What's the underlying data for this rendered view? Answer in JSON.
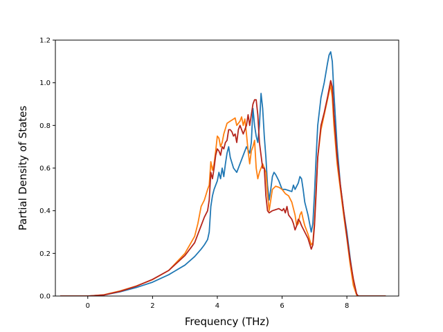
{
  "chart_data": {
    "type": "line",
    "title": "",
    "xlabel": "Frequency (THz)",
    "ylabel": "Partial Density of States",
    "xlim": [
      -1.0,
      9.6
    ],
    "ylim": [
      0.0,
      1.2
    ],
    "xticks": [
      0,
      2,
      4,
      6,
      8
    ],
    "xtick_labels": [
      "0",
      "2",
      "4",
      "6",
      "8"
    ],
    "yticks": [
      0.0,
      0.2,
      0.4,
      0.6,
      0.8,
      1.0,
      1.2
    ],
    "ytick_labels": [
      "0.0",
      "0.2",
      "0.4",
      "0.6",
      "0.8",
      "1.0",
      "1.2"
    ],
    "grid": false,
    "legend": "none",
    "series": [
      {
        "color": "#1f77b4",
        "points": [
          [
            -0.85,
            0.0
          ],
          [
            0.0,
            0.0
          ],
          [
            0.5,
            0.005
          ],
          [
            1.0,
            0.02
          ],
          [
            1.5,
            0.04
          ],
          [
            2.0,
            0.065
          ],
          [
            2.5,
            0.1
          ],
          [
            3.0,
            0.145
          ],
          [
            3.3,
            0.185
          ],
          [
            3.5,
            0.22
          ],
          [
            3.6,
            0.24
          ],
          [
            3.7,
            0.265
          ],
          [
            3.75,
            0.3
          ],
          [
            3.8,
            0.42
          ],
          [
            3.85,
            0.47
          ],
          [
            3.9,
            0.5
          ],
          [
            4.0,
            0.54
          ],
          [
            4.05,
            0.58
          ],
          [
            4.1,
            0.55
          ],
          [
            4.15,
            0.6
          ],
          [
            4.2,
            0.56
          ],
          [
            4.25,
            0.62
          ],
          [
            4.3,
            0.67
          ],
          [
            4.35,
            0.7
          ],
          [
            4.4,
            0.65
          ],
          [
            4.5,
            0.6
          ],
          [
            4.6,
            0.58
          ],
          [
            4.7,
            0.62
          ],
          [
            4.8,
            0.66
          ],
          [
            4.9,
            0.7
          ],
          [
            5.0,
            0.67
          ],
          [
            5.05,
            0.72
          ],
          [
            5.1,
            0.88
          ],
          [
            5.15,
            0.8
          ],
          [
            5.2,
            0.75
          ],
          [
            5.25,
            0.72
          ],
          [
            5.3,
            0.8
          ],
          [
            5.35,
            0.95
          ],
          [
            5.4,
            0.88
          ],
          [
            5.45,
            0.75
          ],
          [
            5.5,
            0.65
          ],
          [
            5.55,
            0.52
          ],
          [
            5.6,
            0.45
          ],
          [
            5.65,
            0.5
          ],
          [
            5.7,
            0.56
          ],
          [
            5.75,
            0.58
          ],
          [
            5.8,
            0.57
          ],
          [
            5.9,
            0.54
          ],
          [
            6.0,
            0.5
          ],
          [
            6.1,
            0.5
          ],
          [
            6.2,
            0.495
          ],
          [
            6.3,
            0.49
          ],
          [
            6.35,
            0.52
          ],
          [
            6.4,
            0.5
          ],
          [
            6.5,
            0.53
          ],
          [
            6.55,
            0.56
          ],
          [
            6.6,
            0.55
          ],
          [
            6.65,
            0.5
          ],
          [
            6.7,
            0.44
          ],
          [
            6.8,
            0.38
          ],
          [
            6.9,
            0.3
          ],
          [
            6.95,
            0.34
          ],
          [
            7.0,
            0.48
          ],
          [
            7.05,
            0.65
          ],
          [
            7.1,
            0.8
          ],
          [
            7.2,
            0.93
          ],
          [
            7.3,
            1.0
          ],
          [
            7.4,
            1.09
          ],
          [
            7.45,
            1.13
          ],
          [
            7.5,
            1.145
          ],
          [
            7.55,
            1.1
          ],
          [
            7.6,
            0.95
          ],
          [
            7.7,
            0.7
          ],
          [
            7.8,
            0.52
          ],
          [
            7.9,
            0.4
          ],
          [
            8.0,
            0.3
          ],
          [
            8.1,
            0.18
          ],
          [
            8.2,
            0.07
          ],
          [
            8.3,
            0.01
          ],
          [
            8.35,
            0.0
          ],
          [
            9.2,
            0.0
          ]
        ]
      },
      {
        "color": "#ff7f0e",
        "points": [
          [
            -0.85,
            0.0
          ],
          [
            0.0,
            0.0
          ],
          [
            0.5,
            0.006
          ],
          [
            1.0,
            0.024
          ],
          [
            1.5,
            0.047
          ],
          [
            2.0,
            0.077
          ],
          [
            2.5,
            0.12
          ],
          [
            3.0,
            0.2
          ],
          [
            3.3,
            0.28
          ],
          [
            3.4,
            0.34
          ],
          [
            3.5,
            0.42
          ],
          [
            3.6,
            0.45
          ],
          [
            3.7,
            0.5
          ],
          [
            3.75,
            0.52
          ],
          [
            3.8,
            0.63
          ],
          [
            3.85,
            0.59
          ],
          [
            3.9,
            0.62
          ],
          [
            3.95,
            0.68
          ],
          [
            4.0,
            0.75
          ],
          [
            4.05,
            0.74
          ],
          [
            4.1,
            0.7
          ],
          [
            4.15,
            0.72
          ],
          [
            4.2,
            0.76
          ],
          [
            4.3,
            0.81
          ],
          [
            4.4,
            0.82
          ],
          [
            4.5,
            0.83
          ],
          [
            4.55,
            0.835
          ],
          [
            4.6,
            0.8
          ],
          [
            4.7,
            0.82
          ],
          [
            4.75,
            0.84
          ],
          [
            4.8,
            0.8
          ],
          [
            4.85,
            0.83
          ],
          [
            4.9,
            0.76
          ],
          [
            4.95,
            0.68
          ],
          [
            5.0,
            0.62
          ],
          [
            5.05,
            0.68
          ],
          [
            5.1,
            0.7
          ],
          [
            5.15,
            0.73
          ],
          [
            5.2,
            0.6
          ],
          [
            5.25,
            0.55
          ],
          [
            5.3,
            0.58
          ],
          [
            5.35,
            0.6
          ],
          [
            5.4,
            0.62
          ],
          [
            5.45,
            0.6
          ],
          [
            5.5,
            0.58
          ],
          [
            5.55,
            0.48
          ],
          [
            5.6,
            0.4
          ],
          [
            5.65,
            0.45
          ],
          [
            5.7,
            0.5
          ],
          [
            5.8,
            0.515
          ],
          [
            5.9,
            0.51
          ],
          [
            6.0,
            0.5
          ],
          [
            6.1,
            0.48
          ],
          [
            6.2,
            0.47
          ],
          [
            6.3,
            0.44
          ],
          [
            6.4,
            0.38
          ],
          [
            6.45,
            0.33
          ],
          [
            6.5,
            0.34
          ],
          [
            6.55,
            0.38
          ],
          [
            6.6,
            0.395
          ],
          [
            6.65,
            0.36
          ],
          [
            6.7,
            0.33
          ],
          [
            6.8,
            0.29
          ],
          [
            6.9,
            0.24
          ],
          [
            6.95,
            0.25
          ],
          [
            7.0,
            0.35
          ],
          [
            7.05,
            0.5
          ],
          [
            7.1,
            0.65
          ],
          [
            7.2,
            0.78
          ],
          [
            7.3,
            0.85
          ],
          [
            7.4,
            0.92
          ],
          [
            7.5,
            0.99
          ],
          [
            7.55,
            0.93
          ],
          [
            7.6,
            0.8
          ],
          [
            7.7,
            0.62
          ],
          [
            7.8,
            0.5
          ],
          [
            7.9,
            0.38
          ],
          [
            8.0,
            0.27
          ],
          [
            8.1,
            0.15
          ],
          [
            8.2,
            0.05
          ],
          [
            8.3,
            0.005
          ],
          [
            8.35,
            0.0
          ],
          [
            9.2,
            0.0
          ]
        ]
      },
      {
        "color": "#b5251c",
        "points": [
          [
            -0.85,
            0.0
          ],
          [
            0.0,
            0.0
          ],
          [
            0.5,
            0.005
          ],
          [
            1.0,
            0.022
          ],
          [
            1.5,
            0.046
          ],
          [
            2.0,
            0.078
          ],
          [
            2.5,
            0.12
          ],
          [
            3.0,
            0.19
          ],
          [
            3.3,
            0.25
          ],
          [
            3.4,
            0.29
          ],
          [
            3.5,
            0.33
          ],
          [
            3.6,
            0.37
          ],
          [
            3.7,
            0.4
          ],
          [
            3.75,
            0.45
          ],
          [
            3.8,
            0.58
          ],
          [
            3.85,
            0.55
          ],
          [
            3.9,
            0.6
          ],
          [
            3.95,
            0.66
          ],
          [
            4.0,
            0.69
          ],
          [
            4.05,
            0.68
          ],
          [
            4.1,
            0.66
          ],
          [
            4.15,
            0.7
          ],
          [
            4.2,
            0.69
          ],
          [
            4.25,
            0.72
          ],
          [
            4.3,
            0.73
          ],
          [
            4.35,
            0.78
          ],
          [
            4.4,
            0.78
          ],
          [
            4.45,
            0.77
          ],
          [
            4.5,
            0.75
          ],
          [
            4.55,
            0.76
          ],
          [
            4.6,
            0.72
          ],
          [
            4.65,
            0.78
          ],
          [
            4.7,
            0.8
          ],
          [
            4.75,
            0.78
          ],
          [
            4.8,
            0.76
          ],
          [
            4.85,
            0.78
          ],
          [
            4.9,
            0.8
          ],
          [
            4.95,
            0.85
          ],
          [
            5.0,
            0.8
          ],
          [
            5.05,
            0.85
          ],
          [
            5.1,
            0.9
          ],
          [
            5.15,
            0.92
          ],
          [
            5.2,
            0.92
          ],
          [
            5.25,
            0.85
          ],
          [
            5.3,
            0.72
          ],
          [
            5.35,
            0.66
          ],
          [
            5.4,
            0.6
          ],
          [
            5.45,
            0.6
          ],
          [
            5.5,
            0.47
          ],
          [
            5.55,
            0.4
          ],
          [
            5.6,
            0.39
          ],
          [
            5.7,
            0.4
          ],
          [
            5.8,
            0.405
          ],
          [
            5.9,
            0.41
          ],
          [
            6.0,
            0.4
          ],
          [
            6.05,
            0.41
          ],
          [
            6.1,
            0.39
          ],
          [
            6.15,
            0.42
          ],
          [
            6.2,
            0.38
          ],
          [
            6.3,
            0.36
          ],
          [
            6.35,
            0.34
          ],
          [
            6.4,
            0.31
          ],
          [
            6.45,
            0.33
          ],
          [
            6.5,
            0.36
          ],
          [
            6.55,
            0.35
          ],
          [
            6.6,
            0.33
          ],
          [
            6.7,
            0.3
          ],
          [
            6.8,
            0.27
          ],
          [
            6.9,
            0.22
          ],
          [
            6.95,
            0.24
          ],
          [
            7.0,
            0.33
          ],
          [
            7.05,
            0.48
          ],
          [
            7.1,
            0.65
          ],
          [
            7.2,
            0.8
          ],
          [
            7.3,
            0.86
          ],
          [
            7.4,
            0.93
          ],
          [
            7.5,
            1.01
          ],
          [
            7.55,
            0.98
          ],
          [
            7.6,
            0.85
          ],
          [
            7.7,
            0.65
          ],
          [
            7.8,
            0.52
          ],
          [
            7.9,
            0.4
          ],
          [
            8.0,
            0.28
          ],
          [
            8.1,
            0.17
          ],
          [
            8.2,
            0.08
          ],
          [
            8.3,
            0.01
          ],
          [
            8.35,
            0.0
          ],
          [
            9.2,
            0.0
          ]
        ]
      }
    ]
  }
}
